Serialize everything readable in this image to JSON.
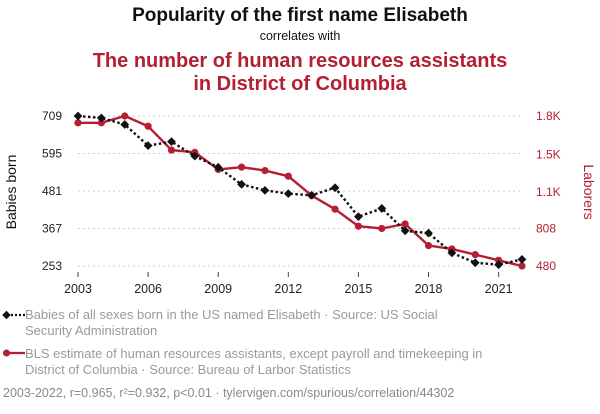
{
  "header": {
    "title": "Popularity of the first name Elisabeth",
    "connector": "correlates with",
    "title2_line1": "The number of human resources assistants",
    "title2_line2": "in District of Columbia"
  },
  "colors": {
    "series1": "#111111",
    "series2": "#b41f32",
    "grid": "#cccccc"
  },
  "chart_data": {
    "type": "line",
    "x": [
      2003,
      2004,
      2005,
      2006,
      2007,
      2008,
      2009,
      2010,
      2011,
      2012,
      2013,
      2014,
      2015,
      2016,
      2017,
      2018,
      2019,
      2020,
      2021,
      2022
    ],
    "xticks": [
      "2003",
      "2006",
      "2009",
      "2012",
      "2015",
      "2018",
      "2021"
    ],
    "xtick_values": [
      2003,
      2006,
      2009,
      2012,
      2015,
      2018,
      2021
    ],
    "xlim": [
      2003,
      2022
    ],
    "y_left": {
      "label": "Babies born",
      "ticks": [
        "709",
        "595",
        "481",
        "367",
        "253"
      ],
      "tick_values": [
        709,
        595,
        481,
        367,
        253
      ],
      "lim": [
        253,
        709
      ]
    },
    "y_right": {
      "label": "Laborers",
      "ticks": [
        "1.8K",
        "1.5K",
        "1.1K",
        "808",
        "480"
      ],
      "tick_values": [
        1800,
        1460,
        1130,
        808,
        480
      ],
      "lim": [
        480,
        1800
      ]
    },
    "grid": "horizontal-dashed",
    "series": [
      {
        "name": "Babies of all sexes born in the US named Elisabeth · Source: US Social Security Administration",
        "axis": "left",
        "style": "dotted",
        "marker": "diamond",
        "values": [
          709,
          703,
          683,
          619,
          631,
          587,
          553,
          501,
          483,
          473,
          468,
          491,
          403,
          428,
          360,
          353,
          293,
          263,
          257,
          273
        ]
      },
      {
        "name": "BLS estimate of human resources assistants, except payroll and timekeeping in District of Columbia · Source: Bureau of Larbor Statistics",
        "axis": "right",
        "style": "solid",
        "marker": "circle",
        "values": [
          1740,
          1740,
          1800,
          1710,
          1500,
          1480,
          1330,
          1350,
          1320,
          1270,
          1100,
          980,
          830,
          810,
          850,
          660,
          630,
          580,
          530,
          480
        ]
      }
    ]
  },
  "legend": {
    "item1_line1": "Babies of all sexes born in the US named Elisabeth · Source: US Social",
    "item1_line2": "Security Administration",
    "item2_line1": "BLS estimate of human resources assistants, except payroll and timekeeping in",
    "item2_line2": "District of Columbia · Source: Bureau of Larbor Statistics"
  },
  "footer": "2003-2022, r=0.965, r²=0.932, p<0.01 · tylervigen.com/spurious/correlation/44302"
}
